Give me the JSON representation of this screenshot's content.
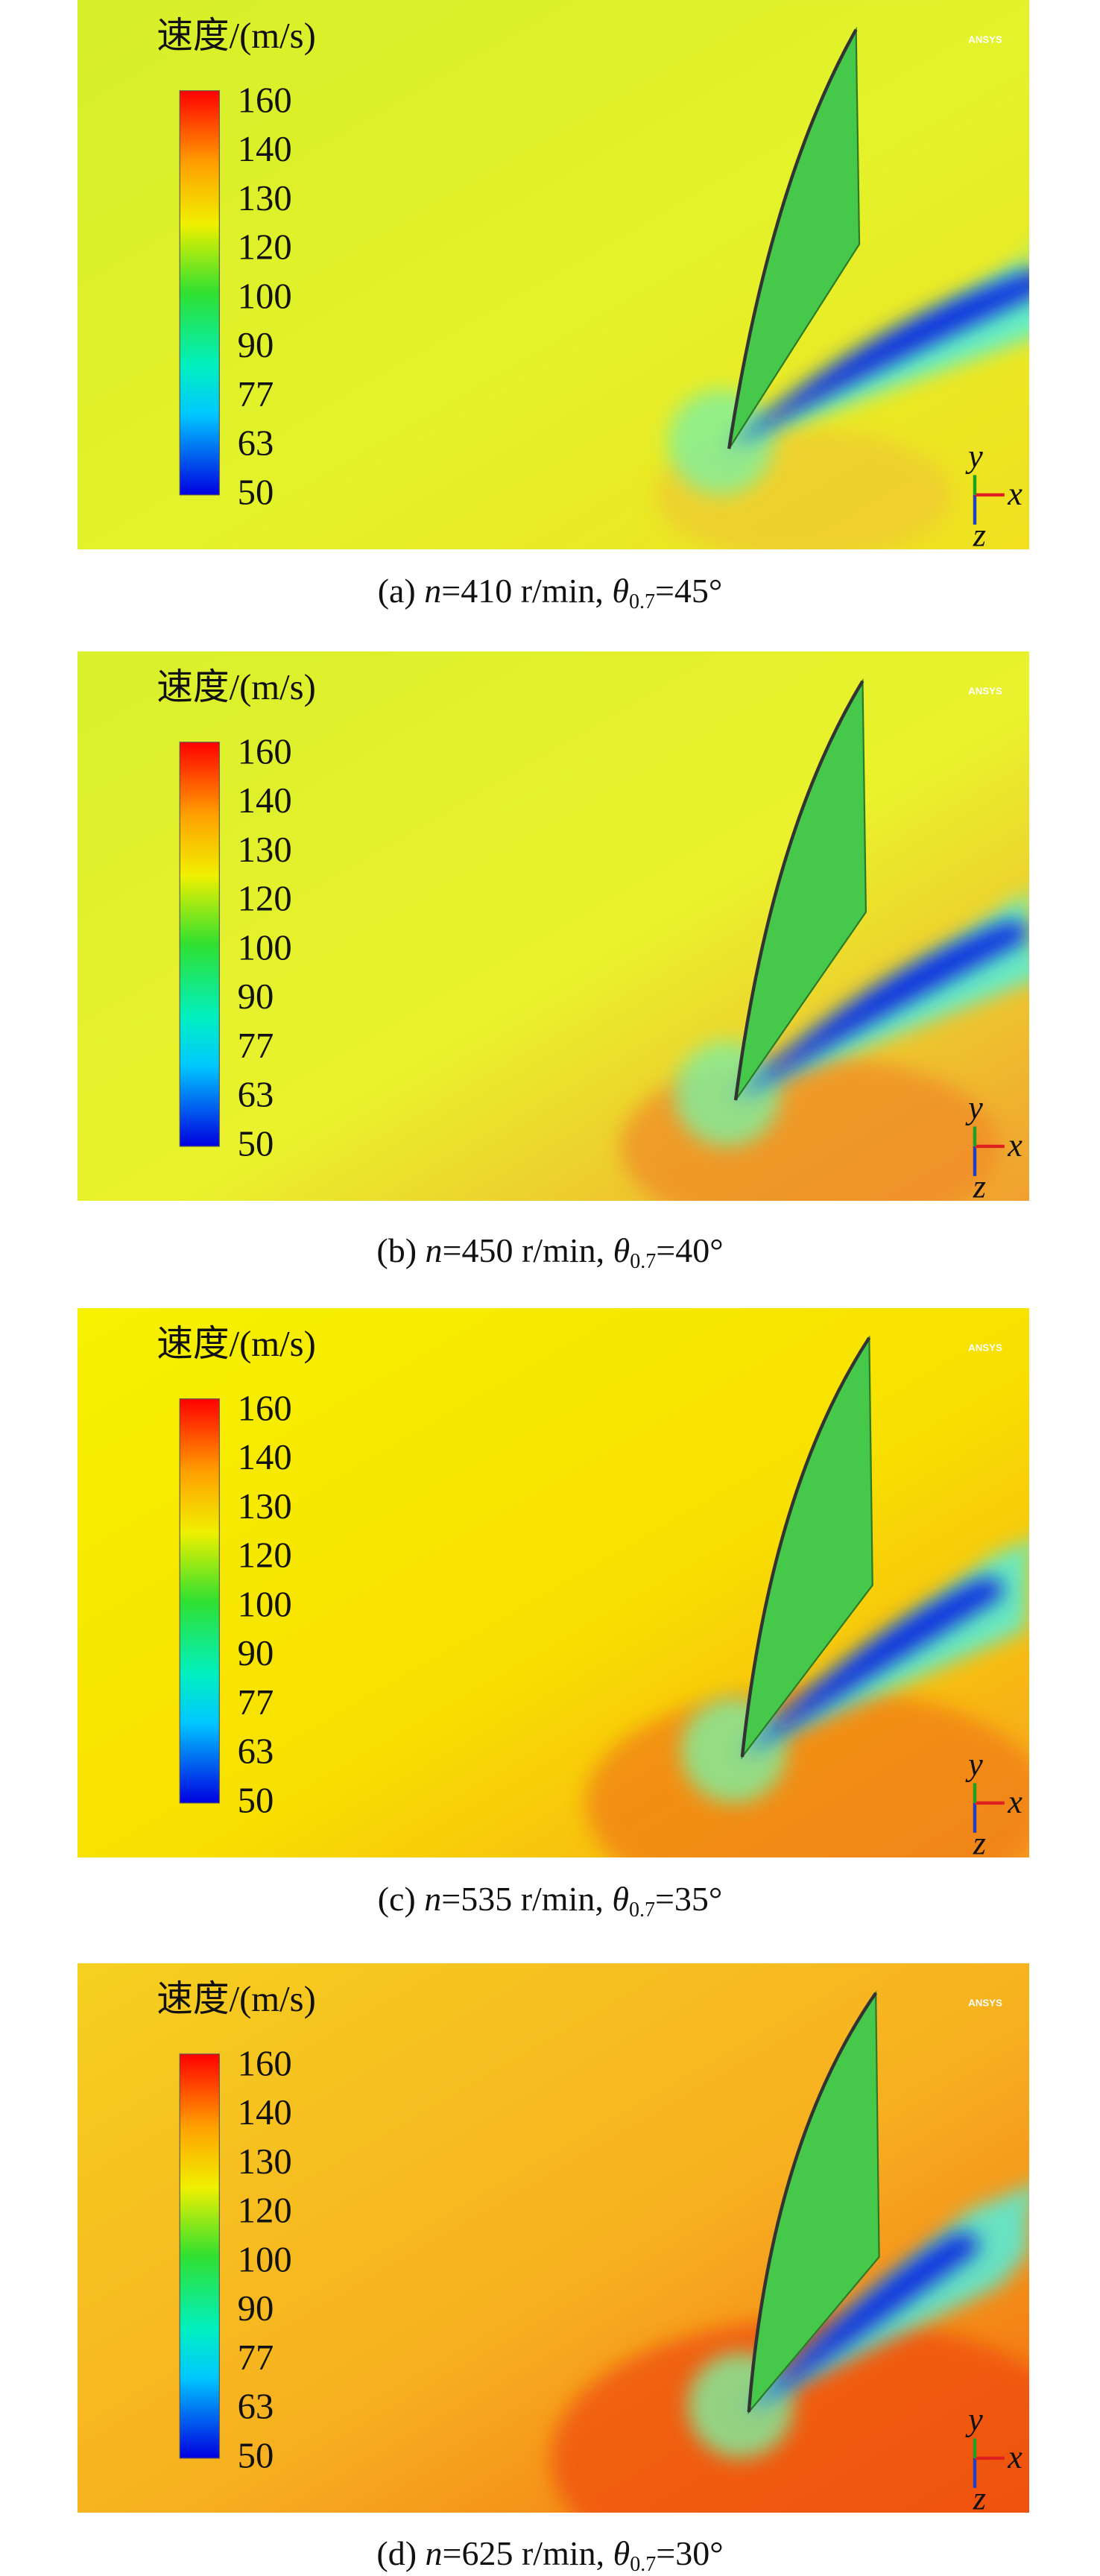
{
  "panels": [
    {
      "legend_title": "速度/(m/s)",
      "legend_ticks": [
        "160",
        "140",
        "130",
        "120",
        "100",
        "90",
        "77",
        "63",
        "50"
      ],
      "watermark": "ANSYS",
      "axes": {
        "y": "y",
        "x": "x",
        "z": "z"
      },
      "caption": {
        "label": "(a)",
        "n_symbol": "n",
        "n_text": "=410 r/min,",
        "theta_symbol": "θ",
        "theta_sub": "0.7",
        "theta_text": "=45°"
      }
    },
    {
      "legend_title": "速度/(m/s)",
      "legend_ticks": [
        "160",
        "140",
        "130",
        "120",
        "100",
        "90",
        "77",
        "63",
        "50"
      ],
      "watermark": "ANSYS",
      "axes": {
        "y": "y",
        "x": "x",
        "z": "z"
      },
      "caption": {
        "label": "(b)",
        "n_symbol": "n",
        "n_text": "=450 r/min,",
        "theta_symbol": "θ",
        "theta_sub": "0.7",
        "theta_text": "=40°"
      }
    },
    {
      "legend_title": "速度/(m/s)",
      "legend_ticks": [
        "160",
        "140",
        "130",
        "120",
        "100",
        "90",
        "77",
        "63",
        "50"
      ],
      "watermark": "ANSYS",
      "axes": {
        "y": "y",
        "x": "x",
        "z": "z"
      },
      "caption": {
        "label": "(c)",
        "n_symbol": "n",
        "n_text": "=535 r/min,",
        "theta_symbol": "θ",
        "theta_sub": "0.7",
        "theta_text": "=35°"
      }
    },
    {
      "legend_title": "速度/(m/s)",
      "legend_ticks": [
        "160",
        "140",
        "130",
        "120",
        "100",
        "90",
        "77",
        "63",
        "50"
      ],
      "watermark": "ANSYS",
      "axes": {
        "y": "y",
        "x": "x",
        "z": "z"
      },
      "caption": {
        "label": "(d)",
        "n_symbol": "n",
        "n_text": "=625 r/min,",
        "theta_symbol": "θ",
        "theta_sub": "0.7",
        "theta_text": "=30°"
      }
    }
  ]
}
